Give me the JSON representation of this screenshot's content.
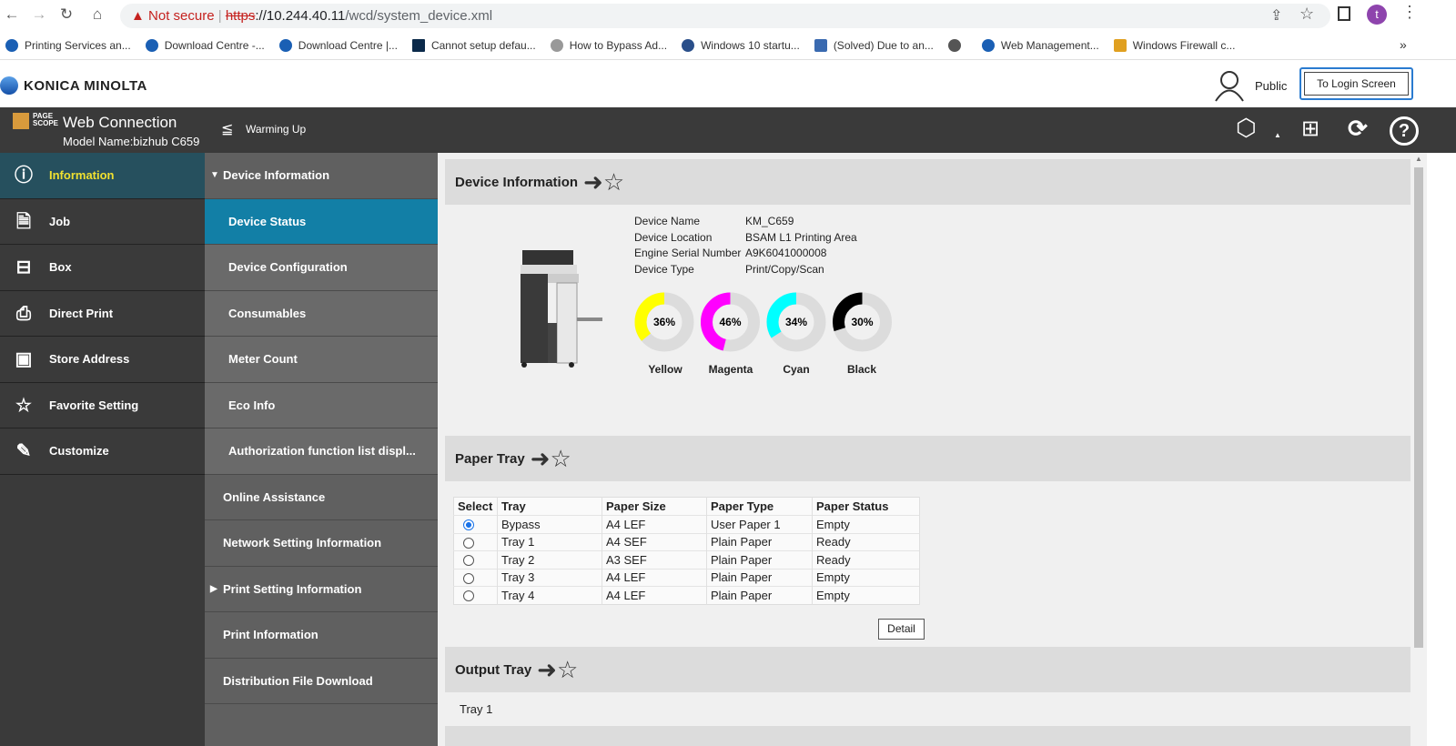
{
  "browser": {
    "not_secure": "Not secure",
    "url_scheme": "https",
    "url_rest": "://10.244.40.11",
    "url_path": "/wcd/system_device.xml",
    "avatar_letter": "t",
    "bookmarks": [
      "Printing Services an...",
      "Download Centre -...",
      "Download Centre |...",
      "Cannot setup defau...",
      "How to Bypass Ad...",
      "Windows 10 startu...",
      "(Solved) Due to an...",
      "",
      "Web Management...",
      "Windows Firewall c..."
    ],
    "more": "»"
  },
  "header": {
    "brand": "KONICA MINOLTA",
    "user": "Public",
    "login_button": "To Login Screen"
  },
  "topbar": {
    "app_name": "Web Connection",
    "model": "Model Name:bizhub C659",
    "status": "Warming Up"
  },
  "sidebar": {
    "items": [
      {
        "label": "Information",
        "icon": "info-icon"
      },
      {
        "label": "Job",
        "icon": "document-icon"
      },
      {
        "label": "Box",
        "icon": "box-icon"
      },
      {
        "label": "Direct Print",
        "icon": "print-icon"
      },
      {
        "label": "Store Address",
        "icon": "address-icon"
      },
      {
        "label": "Favorite Setting",
        "icon": "star-icon"
      },
      {
        "label": "Customize",
        "icon": "customize-icon"
      }
    ]
  },
  "submenu": {
    "items": [
      {
        "label": "Device Information",
        "tri": "▼"
      },
      {
        "label": "Device Status"
      },
      {
        "label": "Device Configuration"
      },
      {
        "label": "Consumables"
      },
      {
        "label": "Meter Count"
      },
      {
        "label": "Eco Info"
      },
      {
        "label": "Authorization function list displ..."
      },
      {
        "label": "Online Assistance"
      },
      {
        "label": "Network Setting Information"
      },
      {
        "label": "Print Setting Information",
        "tri": "▶"
      },
      {
        "label": "Print Information"
      },
      {
        "label": "Distribution File Download"
      }
    ]
  },
  "device_info": {
    "title": "Device Information",
    "rows": [
      [
        "Device Name",
        "KM_C659"
      ],
      [
        "Device Location",
        "BSAM L1 Printing Area"
      ],
      [
        "Engine Serial Number",
        "A9K6041000008"
      ],
      [
        "Device Type",
        "Print/Copy/Scan"
      ]
    ],
    "toner": [
      {
        "name": "Yellow",
        "percent": 36,
        "color": "#ffff00"
      },
      {
        "name": "Magenta",
        "percent": 46,
        "color": "#ff00ff"
      },
      {
        "name": "Cyan",
        "percent": 34,
        "color": "#00ffff"
      },
      {
        "name": "Black",
        "percent": 30,
        "color": "#000000"
      }
    ]
  },
  "paper_tray": {
    "title": "Paper Tray",
    "headers": [
      "Select",
      "Tray",
      "Paper Size",
      "Paper Type",
      "Paper Status"
    ],
    "rows": [
      {
        "selected": true,
        "tray": "Bypass",
        "size": "A4 LEF",
        "type": "User Paper 1",
        "status": "Empty"
      },
      {
        "selected": false,
        "tray": "Tray 1",
        "size": "A4 SEF",
        "type": "Plain Paper",
        "status": "Ready"
      },
      {
        "selected": false,
        "tray": "Tray 2",
        "size": "A3 SEF",
        "type": "Plain Paper",
        "status": "Ready"
      },
      {
        "selected": false,
        "tray": "Tray 3",
        "size": "A4 LEF",
        "type": "Plain Paper",
        "status": "Empty"
      },
      {
        "selected": false,
        "tray": "Tray 4",
        "size": "A4 LEF",
        "type": "Plain Paper",
        "status": "Empty"
      }
    ],
    "detail_button": "Detail"
  },
  "output_tray": {
    "title": "Output Tray",
    "items": [
      "Tray 1"
    ]
  }
}
